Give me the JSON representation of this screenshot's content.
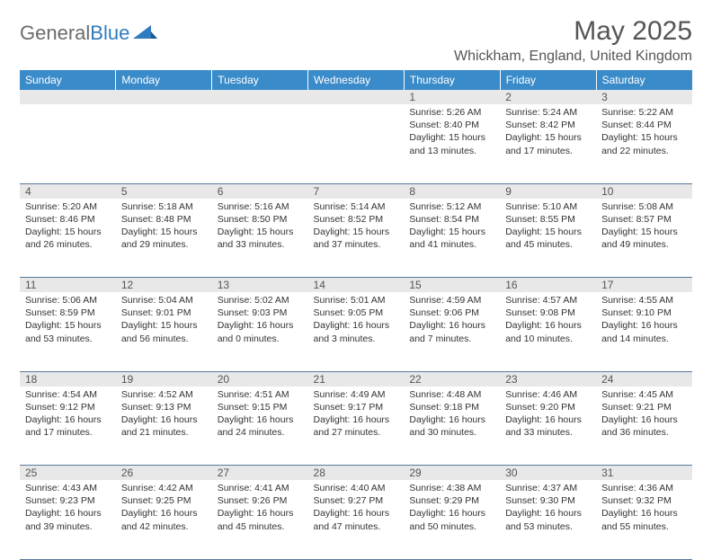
{
  "brand": {
    "part1": "General",
    "part2": "Blue"
  },
  "title": "May 2025",
  "location": "Whickham, England, United Kingdom",
  "colors": {
    "header_bg": "#3a8bc9",
    "header_text": "#ffffff",
    "daynum_bg": "#e8e8e8",
    "text": "#333333",
    "title_text": "#555555",
    "rule": "#5a7a9a"
  },
  "weekdays": [
    "Sunday",
    "Monday",
    "Tuesday",
    "Wednesday",
    "Thursday",
    "Friday",
    "Saturday"
  ],
  "weeks": [
    [
      null,
      null,
      null,
      null,
      {
        "n": "1",
        "sr": "5:26 AM",
        "ss": "8:40 PM",
        "dl": "15 hours and 13 minutes."
      },
      {
        "n": "2",
        "sr": "5:24 AM",
        "ss": "8:42 PM",
        "dl": "15 hours and 17 minutes."
      },
      {
        "n": "3",
        "sr": "5:22 AM",
        "ss": "8:44 PM",
        "dl": "15 hours and 22 minutes."
      }
    ],
    [
      {
        "n": "4",
        "sr": "5:20 AM",
        "ss": "8:46 PM",
        "dl": "15 hours and 26 minutes."
      },
      {
        "n": "5",
        "sr": "5:18 AM",
        "ss": "8:48 PM",
        "dl": "15 hours and 29 minutes."
      },
      {
        "n": "6",
        "sr": "5:16 AM",
        "ss": "8:50 PM",
        "dl": "15 hours and 33 minutes."
      },
      {
        "n": "7",
        "sr": "5:14 AM",
        "ss": "8:52 PM",
        "dl": "15 hours and 37 minutes."
      },
      {
        "n": "8",
        "sr": "5:12 AM",
        "ss": "8:54 PM",
        "dl": "15 hours and 41 minutes."
      },
      {
        "n": "9",
        "sr": "5:10 AM",
        "ss": "8:55 PM",
        "dl": "15 hours and 45 minutes."
      },
      {
        "n": "10",
        "sr": "5:08 AM",
        "ss": "8:57 PM",
        "dl": "15 hours and 49 minutes."
      }
    ],
    [
      {
        "n": "11",
        "sr": "5:06 AM",
        "ss": "8:59 PM",
        "dl": "15 hours and 53 minutes."
      },
      {
        "n": "12",
        "sr": "5:04 AM",
        "ss": "9:01 PM",
        "dl": "15 hours and 56 minutes."
      },
      {
        "n": "13",
        "sr": "5:02 AM",
        "ss": "9:03 PM",
        "dl": "16 hours and 0 minutes."
      },
      {
        "n": "14",
        "sr": "5:01 AM",
        "ss": "9:05 PM",
        "dl": "16 hours and 3 minutes."
      },
      {
        "n": "15",
        "sr": "4:59 AM",
        "ss": "9:06 PM",
        "dl": "16 hours and 7 minutes."
      },
      {
        "n": "16",
        "sr": "4:57 AM",
        "ss": "9:08 PM",
        "dl": "16 hours and 10 minutes."
      },
      {
        "n": "17",
        "sr": "4:55 AM",
        "ss": "9:10 PM",
        "dl": "16 hours and 14 minutes."
      }
    ],
    [
      {
        "n": "18",
        "sr": "4:54 AM",
        "ss": "9:12 PM",
        "dl": "16 hours and 17 minutes."
      },
      {
        "n": "19",
        "sr": "4:52 AM",
        "ss": "9:13 PM",
        "dl": "16 hours and 21 minutes."
      },
      {
        "n": "20",
        "sr": "4:51 AM",
        "ss": "9:15 PM",
        "dl": "16 hours and 24 minutes."
      },
      {
        "n": "21",
        "sr": "4:49 AM",
        "ss": "9:17 PM",
        "dl": "16 hours and 27 minutes."
      },
      {
        "n": "22",
        "sr": "4:48 AM",
        "ss": "9:18 PM",
        "dl": "16 hours and 30 minutes."
      },
      {
        "n": "23",
        "sr": "4:46 AM",
        "ss": "9:20 PM",
        "dl": "16 hours and 33 minutes."
      },
      {
        "n": "24",
        "sr": "4:45 AM",
        "ss": "9:21 PM",
        "dl": "16 hours and 36 minutes."
      }
    ],
    [
      {
        "n": "25",
        "sr": "4:43 AM",
        "ss": "9:23 PM",
        "dl": "16 hours and 39 minutes."
      },
      {
        "n": "26",
        "sr": "4:42 AM",
        "ss": "9:25 PM",
        "dl": "16 hours and 42 minutes."
      },
      {
        "n": "27",
        "sr": "4:41 AM",
        "ss": "9:26 PM",
        "dl": "16 hours and 45 minutes."
      },
      {
        "n": "28",
        "sr": "4:40 AM",
        "ss": "9:27 PM",
        "dl": "16 hours and 47 minutes."
      },
      {
        "n": "29",
        "sr": "4:38 AM",
        "ss": "9:29 PM",
        "dl": "16 hours and 50 minutes."
      },
      {
        "n": "30",
        "sr": "4:37 AM",
        "ss": "9:30 PM",
        "dl": "16 hours and 53 minutes."
      },
      {
        "n": "31",
        "sr": "4:36 AM",
        "ss": "9:32 PM",
        "dl": "16 hours and 55 minutes."
      }
    ]
  ],
  "labels": {
    "sunrise": "Sunrise:",
    "sunset": "Sunset:",
    "daylight": "Daylight:"
  }
}
